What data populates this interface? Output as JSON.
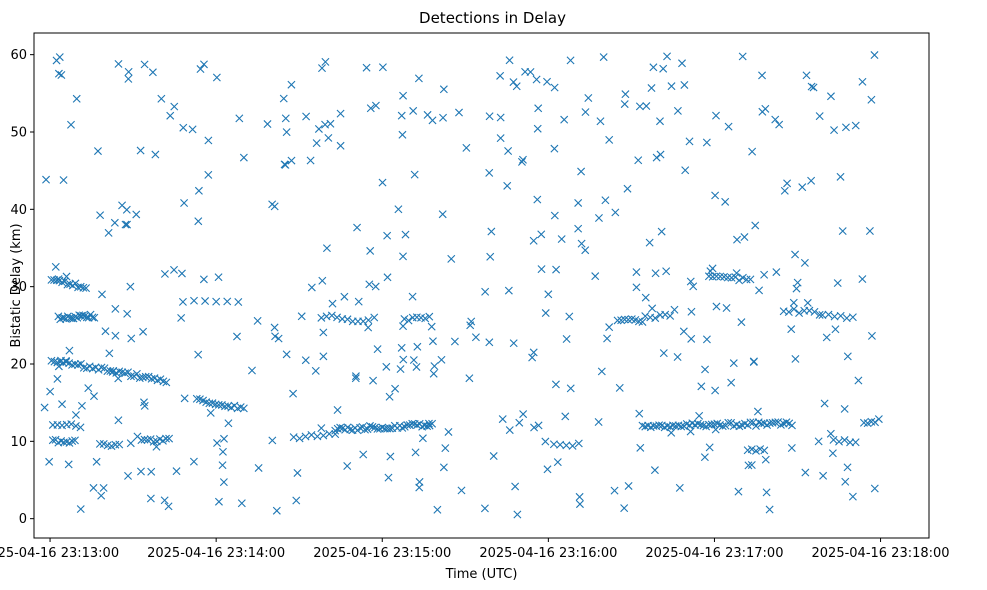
{
  "chart_data": {
    "type": "scatter",
    "title": "Detections in Delay",
    "xlabel": "Time (UTC)",
    "ylabel": "Bistatic Delay (km)",
    "x_unit": "seconds",
    "x_start": "2025-04-16 23:13:00",
    "xlim": [
      -5.8,
      317.5
    ],
    "ylim": [
      -2.5,
      62.8
    ],
    "x_ticks": [
      0,
      60,
      120,
      180,
      240,
      300
    ],
    "x_tick_labels": [
      "2025-04-16 23:13:00",
      "2025-04-16 23:14:00",
      "2025-04-16 23:15:00",
      "2025-04-16 23:16:00",
      "2025-04-16 23:17:00",
      "2025-04-16 23:18:00"
    ],
    "y_ticks": [
      0,
      10,
      20,
      30,
      40,
      50,
      60
    ],
    "y_tick_labels": [
      "0",
      "10",
      "20",
      "30",
      "40",
      "50",
      "60"
    ],
    "marker": "x",
    "color": "#1f77b4",
    "grid": false,
    "legend": "none",
    "series": [
      {
        "tracks": [
          {
            "x0": 0.5,
            "x1": 42,
            "y0": 20.5,
            "y1": 17.8,
            "n": 40
          },
          {
            "x0": 0.5,
            "x1": 13,
            "y0": 31.0,
            "y1": 29.8,
            "n": 14
          },
          {
            "x0": 3,
            "x1": 16,
            "y0": 26.0,
            "y1": 26.2,
            "n": 20
          },
          {
            "x0": 1,
            "x1": 11,
            "y0": 12.0,
            "y1": 12.0,
            "n": 7
          },
          {
            "x0": 1,
            "x1": 9,
            "y0": 10.0,
            "y1": 10.0,
            "n": 9
          },
          {
            "x0": 18,
            "x1": 25,
            "y0": 9.5,
            "y1": 9.5,
            "n": 6
          },
          {
            "x0": 33,
            "x1": 43,
            "y0": 10.0,
            "y1": 10.3,
            "n": 10
          },
          {
            "x0": 48,
            "x1": 68,
            "y0": 28.0,
            "y1": 28.0,
            "n": 6
          },
          {
            "x0": 53,
            "x1": 70,
            "y0": 15.3,
            "y1": 14.2,
            "n": 16
          },
          {
            "x0": 88,
            "x1": 103,
            "y0": 10.5,
            "y1": 10.8,
            "n": 8
          },
          {
            "x0": 103,
            "x1": 138,
            "y0": 11.5,
            "y1": 12.2,
            "n": 40
          },
          {
            "x0": 98,
            "x1": 115,
            "y0": 26.2,
            "y1": 25.5,
            "n": 10
          },
          {
            "x0": 128,
            "x1": 137,
            "y0": 25.7,
            "y1": 25.9,
            "n": 7
          },
          {
            "x0": 182,
            "x1": 191,
            "y0": 9.5,
            "y1": 9.5,
            "n": 5
          },
          {
            "x0": 205,
            "x1": 214,
            "y0": 25.8,
            "y1": 25.6,
            "n": 8
          },
          {
            "x0": 214,
            "x1": 268,
            "y0": 12.0,
            "y1": 12.3,
            "n": 55
          },
          {
            "x0": 215,
            "x1": 224,
            "y0": 26.0,
            "y1": 26.3,
            "n": 6
          },
          {
            "x0": 238,
            "x1": 253,
            "y0": 31.2,
            "y1": 30.9,
            "n": 12
          },
          {
            "x0": 252,
            "x1": 258,
            "y0": 9.0,
            "y1": 9.0,
            "n": 5
          },
          {
            "x0": 265,
            "x1": 278,
            "y0": 27.0,
            "y1": 26.6,
            "n": 8
          },
          {
            "x0": 279,
            "x1": 290,
            "y0": 26.5,
            "y1": 26.1,
            "n": 6
          },
          {
            "x0": 283,
            "x1": 291,
            "y0": 10.0,
            "y1": 10.0,
            "n": 5
          },
          {
            "x0": 294,
            "x1": 298,
            "y0": 12.5,
            "y1": 12.5,
            "n": 4
          }
        ],
        "scatter": {
          "n": 430,
          "x_range": [
            -3,
            301
          ],
          "y_range": [
            0.5,
            60
          ],
          "seed": 20250416
        }
      }
    ]
  }
}
